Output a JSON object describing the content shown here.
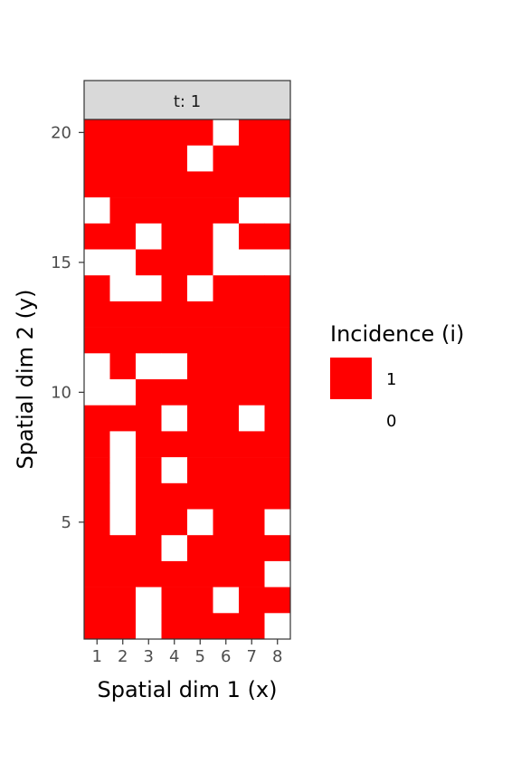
{
  "chart_data": {
    "type": "heatmap",
    "facet_label": "t: 1",
    "xlabel": "Spatial dim 1 (x)",
    "ylabel": "Spatial dim 2 (y)",
    "x_categories": [
      1,
      2,
      3,
      4,
      5,
      6,
      7,
      8
    ],
    "x_tick_labels": [
      "1",
      "2",
      "3",
      "4",
      "5",
      "6",
      "7",
      "8"
    ],
    "y_range": [
      1,
      20
    ],
    "y_ticks": [
      5,
      10,
      15,
      20
    ],
    "y_tick_labels": [
      "5",
      "10",
      "15",
      "20"
    ],
    "rows_top_to_bottom_y": [
      20,
      19,
      18,
      17,
      16,
      15,
      14,
      13,
      12,
      11,
      10,
      9,
      8,
      7,
      6,
      5,
      4,
      3,
      2,
      1
    ],
    "incidence_rows_top_to_bottom": [
      [
        1,
        1,
        1,
        1,
        1,
        0,
        1,
        1
      ],
      [
        1,
        1,
        1,
        1,
        0,
        1,
        1,
        1
      ],
      [
        1,
        1,
        1,
        1,
        1,
        1,
        1,
        1
      ],
      [
        0,
        1,
        1,
        1,
        1,
        1,
        0,
        0
      ],
      [
        1,
        1,
        0,
        1,
        1,
        0,
        1,
        1
      ],
      [
        0,
        0,
        1,
        1,
        1,
        0,
        0,
        0
      ],
      [
        1,
        0,
        0,
        1,
        0,
        1,
        1,
        1
      ],
      [
        1,
        1,
        1,
        1,
        1,
        1,
        1,
        1
      ],
      [
        1,
        1,
        1,
        1,
        1,
        1,
        1,
        1
      ],
      [
        0,
        1,
        0,
        0,
        1,
        1,
        1,
        1
      ],
      [
        0,
        0,
        1,
        1,
        1,
        1,
        1,
        1
      ],
      [
        1,
        1,
        1,
        0,
        1,
        1,
        0,
        1
      ],
      [
        1,
        0,
        1,
        1,
        1,
        1,
        1,
        1
      ],
      [
        1,
        0,
        1,
        0,
        1,
        1,
        1,
        1
      ],
      [
        1,
        0,
        1,
        1,
        1,
        1,
        1,
        1
      ],
      [
        1,
        0,
        1,
        1,
        0,
        1,
        1,
        0
      ],
      [
        1,
        1,
        1,
        0,
        1,
        1,
        1,
        1
      ],
      [
        1,
        1,
        1,
        1,
        1,
        1,
        1,
        0
      ],
      [
        1,
        1,
        0,
        1,
        1,
        0,
        1,
        1
      ],
      [
        1,
        1,
        0,
        1,
        1,
        1,
        1,
        0
      ]
    ],
    "legend": {
      "title": "Incidence (i)",
      "entries": [
        {
          "label": "1",
          "color": "#ff0000"
        },
        {
          "label": "0",
          "color": "#ffffff"
        }
      ],
      "placement": "right"
    },
    "colors": {
      "incidence_1": "#ff0000",
      "incidence_0": "#ffffff",
      "facet_strip": "#d9d9d9",
      "border": "#333333"
    }
  }
}
